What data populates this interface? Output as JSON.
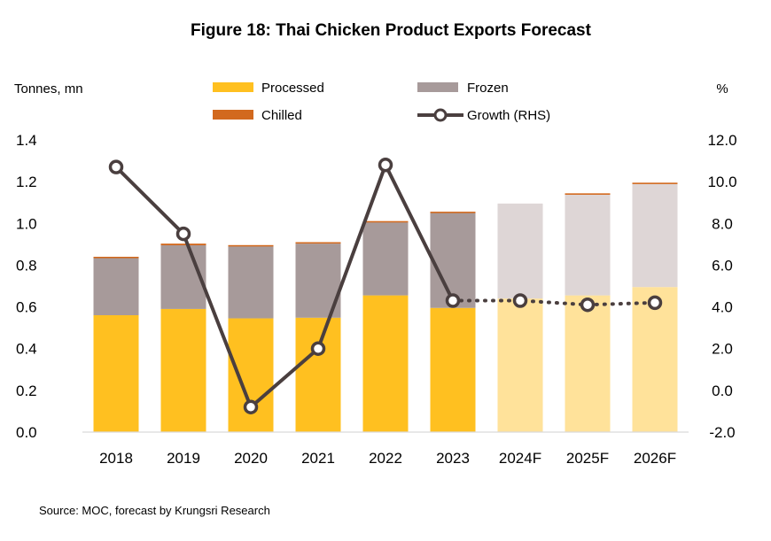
{
  "chart_data": {
    "type": "bar",
    "title": "Figure 18: Thai Chicken Product Exports Forecast",
    "ylabel_left": "Tonnes, mn",
    "ylabel_right": "%",
    "source": "Source: MOC, forecast by Krungsri Research",
    "categories": [
      "2018",
      "2019",
      "2020",
      "2021",
      "2022",
      "2023",
      "2024F",
      "2025F",
      "2026F"
    ],
    "forecast_flags": [
      false,
      false,
      false,
      false,
      false,
      false,
      true,
      true,
      true
    ],
    "ylim_left": [
      0,
      1.4
    ],
    "yticks_left": [
      "0.0",
      "0.2",
      "0.4",
      "0.6",
      "0.8",
      "1.0",
      "1.2",
      "1.4"
    ],
    "ylim_right": [
      -2,
      12
    ],
    "yticks_right": [
      "-2.0",
      "0.0",
      "2.0",
      "4.0",
      "6.0",
      "8.0",
      "10.0",
      "12.0"
    ],
    "series": [
      {
        "name": "Processed",
        "axis": "left",
        "values": [
          0.56,
          0.59,
          0.545,
          0.548,
          0.655,
          0.595,
          0.64,
          0.655,
          0.695
        ]
      },
      {
        "name": "Frozen",
        "axis": "left",
        "values": [
          0.275,
          0.305,
          0.345,
          0.355,
          0.35,
          0.455,
          0.455,
          0.485,
          0.495
        ]
      },
      {
        "name": "Chilled",
        "axis": "left",
        "values": [
          0.005,
          0.008,
          0.006,
          0.007,
          0.006,
          0.006,
          0.0,
          0.004,
          0.005
        ]
      },
      {
        "name": "Growth (RHS)",
        "axis": "right",
        "values": [
          10.7,
          7.5,
          -0.8,
          2.0,
          10.8,
          4.3,
          4.3,
          4.1,
          4.2
        ]
      }
    ],
    "colors": {
      "processed": "#FFC020",
      "processed_forecast": "#FFE29A",
      "frozen": "#A79A9A",
      "frozen_forecast": "#DED6D6",
      "chilled": "#D2691E",
      "growth_line": "#4A3F3F",
      "marker_fill": "#FFFFFF"
    },
    "legend": {
      "position": "top",
      "items": [
        "Processed",
        "Frozen",
        "Chilled",
        "Growth (RHS)"
      ]
    },
    "grid": false
  }
}
